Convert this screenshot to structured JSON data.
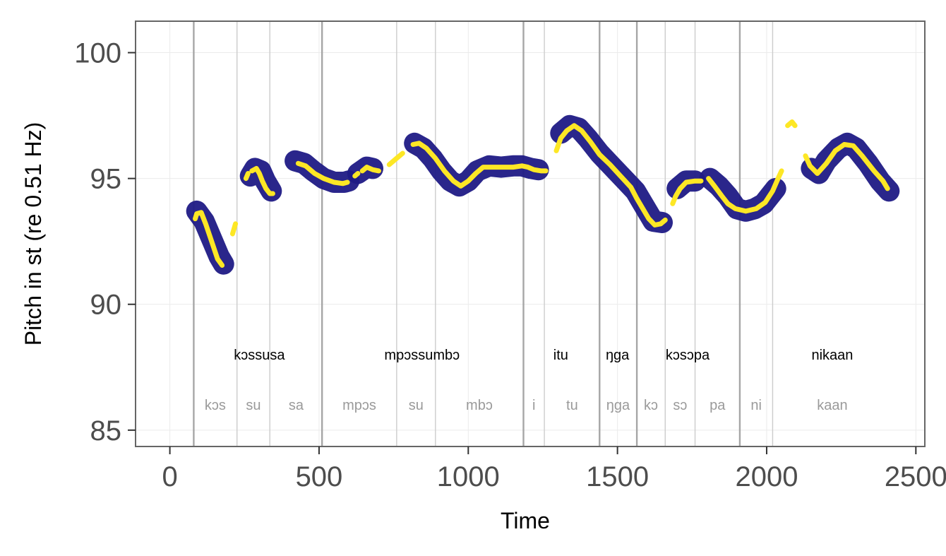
{
  "chart_data": {
    "type": "line",
    "title": "",
    "xlabel": "Time",
    "ylabel": "Pitch in st (re 0.51 Hz)",
    "xlim": [
      -115,
      2530
    ],
    "ylim": [
      84.35,
      101.25
    ],
    "x_ticks": [
      0,
      500,
      1000,
      1500,
      2000,
      2500
    ],
    "x_tick_labels": [
      "0",
      "500",
      "1000",
      "1500",
      "2000",
      "2500"
    ],
    "y_ticks": [
      85,
      90,
      95,
      100
    ],
    "y_tick_labels": [
      "85",
      "90",
      "95",
      "100"
    ],
    "grid": "major gridlines, white, dashed-style on white panel",
    "colors": {
      "thick_band": "#1f1a85",
      "pitch_line": "#fde725",
      "word_boundary": "#a6a6a6",
      "syllable_boundary": "#cccccc",
      "panel_border": "#666666"
    },
    "word_boundaries": [
      80,
      510,
      1185,
      1440,
      1565,
      1910
    ],
    "syllable_boundaries": [
      225,
      335,
      760,
      890,
      1255,
      1660,
      1760,
      2020
    ],
    "words": [
      {
        "label": "kɔssusa",
        "x": 300
      },
      {
        "label": "mpɔssumbɔ",
        "x": 845
      },
      {
        "label": "itu",
        "x": 1310
      },
      {
        "label": "ŋga",
        "x": 1500
      },
      {
        "label": "kɔsɔpa",
        "x": 1735
      },
      {
        "label": "nikaan",
        "x": 2220
      }
    ],
    "syllables": [
      {
        "label": "kɔs",
        "x": 152
      },
      {
        "label": "su",
        "x": 280
      },
      {
        "label": "sa",
        "x": 423
      },
      {
        "label": "mpɔs",
        "x": 635
      },
      {
        "label": "su",
        "x": 825
      },
      {
        "label": "mbɔ",
        "x": 1037
      },
      {
        "label": "i",
        "x": 1220
      },
      {
        "label": "tu",
        "x": 1348
      },
      {
        "label": "ŋga",
        "x": 1502
      },
      {
        "label": "kɔ",
        "x": 1612
      },
      {
        "label": "sɔ",
        "x": 1710
      },
      {
        "label": "pa",
        "x": 1835
      },
      {
        "label": "ni",
        "x": 1965
      },
      {
        "label": "kaan",
        "x": 2220
      }
    ],
    "word_label_y": 88,
    "syllable_label_y": 86,
    "series": [
      {
        "role": "thick_band",
        "segments": [
          [
            [
              90,
              93.7
            ],
            [
              115,
              93.3
            ],
            [
              140,
              92.6
            ],
            [
              165,
              91.9
            ],
            [
              180,
              91.6
            ]
          ],
          [
            [
              270,
              95.1
            ],
            [
              285,
              95.4
            ],
            [
              305,
              95.3
            ],
            [
              320,
              94.9
            ],
            [
              340,
              94.5
            ]
          ],
          [
            [
              420,
              95.7
            ],
            [
              450,
              95.6
            ],
            [
              480,
              95.3
            ],
            [
              515,
              95.0
            ],
            [
              550,
              94.85
            ],
            [
              585,
              94.85
            ],
            [
              600,
              94.9
            ]
          ],
          [
            [
              630,
              95.2
            ],
            [
              660,
              95.45
            ],
            [
              680,
              95.4
            ]
          ],
          [
            [
              820,
              96.4
            ],
            [
              850,
              96.2
            ],
            [
              880,
              95.8
            ],
            [
              910,
              95.3
            ],
            [
              940,
              94.9
            ],
            [
              970,
              94.7
            ],
            [
              1000,
              94.9
            ],
            [
              1030,
              95.3
            ],
            [
              1070,
              95.5
            ],
            [
              1110,
              95.45
            ],
            [
              1150,
              95.5
            ],
            [
              1180,
              95.5
            ],
            [
              1210,
              95.4
            ],
            [
              1235,
              95.35
            ]
          ],
          [
            [
              1310,
              96.8
            ],
            [
              1340,
              97.1
            ],
            [
              1370,
              97.0
            ],
            [
              1400,
              96.6
            ],
            [
              1440,
              96.0
            ],
            [
              1480,
              95.5
            ],
            [
              1520,
              95.0
            ],
            [
              1560,
              94.5
            ],
            [
              1590,
              93.9
            ],
            [
              1620,
              93.3
            ],
            [
              1650,
              93.25
            ]
          ],
          [
            [
              1700,
              94.6
            ],
            [
              1730,
              94.9
            ],
            [
              1760,
              94.9
            ]
          ],
          [
            [
              1810,
              95.0
            ],
            [
              1840,
              94.7
            ],
            [
              1870,
              94.3
            ],
            [
              1900,
              93.8
            ],
            [
              1930,
              93.7
            ],
            [
              1960,
              93.8
            ],
            [
              1990,
              94.0
            ],
            [
              2010,
              94.3
            ],
            [
              2030,
              94.6
            ]
          ],
          [
            [
              2150,
              95.4
            ],
            [
              2175,
              95.2
            ],
            [
              2200,
              95.7
            ],
            [
              2240,
              96.2
            ],
            [
              2270,
              96.4
            ],
            [
              2300,
              96.2
            ],
            [
              2340,
              95.6
            ],
            [
              2380,
              94.9
            ],
            [
              2410,
              94.5
            ]
          ]
        ]
      },
      {
        "role": "pitch_line",
        "segments": [
          [
            [
              85,
              93.4
            ],
            [
              90,
              93.6
            ],
            [
              105,
              93.65
            ],
            [
              120,
              93.2
            ],
            [
              140,
              92.5
            ],
            [
              160,
              91.8
            ],
            [
              175,
              91.55
            ]
          ],
          [
            [
              210,
              92.8
            ],
            [
              220,
              93.2
            ]
          ],
          [
            [
              255,
              95.0
            ],
            [
              262,
              95.2
            ]
          ],
          [
            [
              275,
              95.3
            ],
            [
              290,
              95.4
            ],
            [
              300,
              95.2
            ],
            [
              310,
              94.9
            ],
            [
              322,
              94.6
            ],
            [
              335,
              94.4
            ],
            [
              345,
              94.4
            ]
          ],
          [
            [
              430,
              95.6
            ],
            [
              455,
              95.5
            ],
            [
              485,
              95.2
            ],
            [
              515,
              95.0
            ],
            [
              550,
              94.85
            ],
            [
              580,
              94.8
            ],
            [
              595,
              94.85
            ]
          ],
          [
            [
              620,
              95.1
            ],
            [
              630,
              95.2
            ]
          ],
          [
            [
              645,
              95.3
            ],
            [
              660,
              95.45
            ],
            [
              680,
              95.35
            ],
            [
              700,
              95.3
            ]
          ],
          [
            [
              735,
              95.55
            ],
            [
              760,
              95.8
            ],
            [
              780,
              96.0
            ]
          ],
          [
            [
              815,
              96.35
            ],
            [
              835,
              96.4
            ],
            [
              860,
              96.2
            ],
            [
              890,
              95.8
            ],
            [
              920,
              95.3
            ],
            [
              950,
              94.9
            ],
            [
              975,
              94.7
            ],
            [
              1000,
              94.9
            ],
            [
              1025,
              95.2
            ],
            [
              1050,
              95.45
            ],
            [
              1080,
              95.45
            ],
            [
              1110,
              95.45
            ],
            [
              1150,
              95.45
            ],
            [
              1180,
              95.5
            ],
            [
              1200,
              95.45
            ],
            [
              1220,
              95.35
            ],
            [
              1245,
              95.3
            ],
            [
              1260,
              95.3
            ]
          ],
          [
            [
              1295,
              96.1
            ],
            [
              1310,
              96.6
            ],
            [
              1330,
              96.9
            ],
            [
              1355,
              97.1
            ],
            [
              1380,
              96.9
            ],
            [
              1410,
              96.45
            ],
            [
              1440,
              95.95
            ],
            [
              1475,
              95.55
            ],
            [
              1510,
              95.1
            ],
            [
              1545,
              94.65
            ],
            [
              1565,
              94.2
            ],
            [
              1585,
              93.8
            ],
            [
              1605,
              93.4
            ],
            [
              1625,
              93.15
            ],
            [
              1645,
              93.2
            ],
            [
              1660,
              93.35
            ]
          ],
          [
            [
              1685,
              94.0
            ],
            [
              1695,
              94.3
            ],
            [
              1710,
              94.6
            ],
            [
              1730,
              94.85
            ],
            [
              1760,
              94.9
            ],
            [
              1780,
              94.9
            ]
          ],
          [
            [
              1805,
              95.0
            ],
            [
              1825,
              94.7
            ],
            [
              1850,
              94.3
            ],
            [
              1870,
              94.0
            ],
            [
              1895,
              93.8
            ],
            [
              1930,
              93.7
            ],
            [
              1965,
              93.8
            ],
            [
              1995,
              94.05
            ],
            [
              2020,
              94.5
            ],
            [
              2040,
              95.05
            ],
            [
              2050,
              95.3
            ]
          ],
          [
            [
              2070,
              97.1
            ],
            [
              2085,
              97.25
            ],
            [
              2095,
              97.1
            ]
          ],
          [
            [
              2130,
              95.9
            ],
            [
              2145,
              95.5
            ],
            [
              2170,
              95.2
            ],
            [
              2200,
              95.6
            ],
            [
              2230,
              96.1
            ],
            [
              2260,
              96.35
            ],
            [
              2290,
              96.3
            ],
            [
              2320,
              95.9
            ],
            [
              2360,
              95.3
            ],
            [
              2390,
              94.9
            ],
            [
              2405,
              94.6
            ]
          ]
        ]
      }
    ]
  }
}
